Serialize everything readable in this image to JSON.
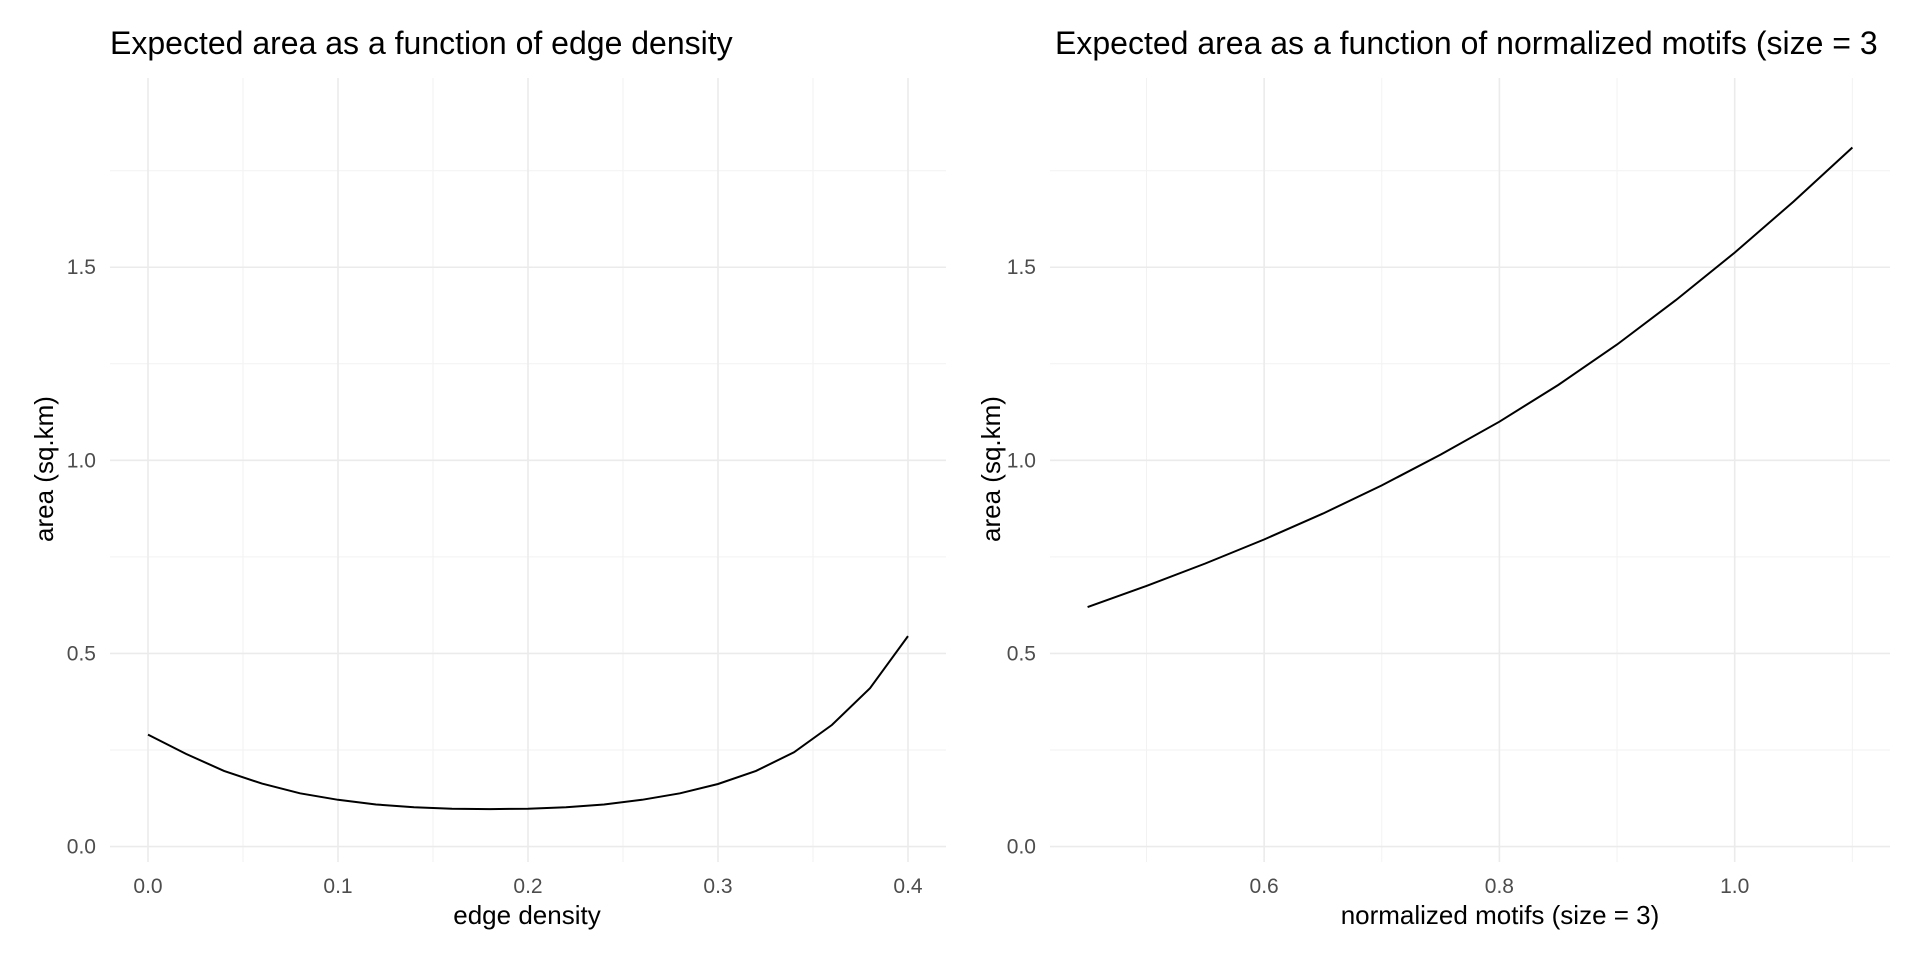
{
  "chart_data": [
    {
      "type": "line",
      "title": "Expected area as a function of edge density",
      "xlabel": "edge density",
      "ylabel": "area (sq.km)",
      "xlim": [
        -0.02,
        0.42
      ],
      "ylim": [
        -0.04,
        1.99
      ],
      "x_ticks": [
        0.0,
        0.1,
        0.2,
        0.3,
        0.4
      ],
      "x_tick_labels": [
        "0.0",
        "0.1",
        "0.2",
        "0.3",
        "0.4"
      ],
      "x_minor": [
        0.05,
        0.15,
        0.25,
        0.35
      ],
      "y_ticks": [
        0.0,
        0.5,
        1.0,
        1.5
      ],
      "y_tick_labels": [
        "0.0",
        "0.5",
        "1.0",
        "1.5"
      ],
      "y_minor": [
        0.25,
        0.75,
        1.25,
        1.75
      ],
      "grid": true,
      "series": [
        {
          "x": [
            0.0,
            0.02,
            0.04,
            0.06,
            0.08,
            0.1,
            0.12,
            0.14,
            0.16,
            0.18,
            0.2,
            0.22,
            0.24,
            0.26,
            0.28,
            0.3,
            0.32,
            0.34,
            0.36,
            0.38,
            0.4
          ],
          "values": [
            0.29,
            0.24,
            0.196,
            0.163,
            0.138,
            0.121,
            0.109,
            0.102,
            0.098,
            0.097,
            0.098,
            0.102,
            0.109,
            0.121,
            0.138,
            0.162,
            0.196,
            0.244,
            0.315,
            0.41,
            0.545
          ]
        }
      ]
    },
    {
      "type": "line",
      "title": "Expected area as a function of normalized motifs (size = 3",
      "xlabel": "normalized motifs (size = 3)",
      "ylabel": "area (sq.km)",
      "xlim": [
        0.418,
        1.132
      ],
      "ylim": [
        -0.04,
        1.99
      ],
      "x_ticks": [
        0.6,
        0.8,
        1.0
      ],
      "x_tick_labels": [
        "0.6",
        "0.8",
        "1.0"
      ],
      "x_minor": [
        0.5,
        0.7,
        0.9,
        1.1
      ],
      "y_ticks": [
        0.0,
        0.5,
        1.0,
        1.5
      ],
      "y_tick_labels": [
        "0.0",
        "0.5",
        "1.0",
        "1.5"
      ],
      "y_minor": [
        0.25,
        0.75,
        1.25,
        1.75
      ],
      "grid": true,
      "series": [
        {
          "x": [
            0.45,
            0.5,
            0.55,
            0.6,
            0.65,
            0.7,
            0.75,
            0.8,
            0.85,
            0.9,
            0.95,
            1.0,
            1.05,
            1.1
          ],
          "values": [
            0.62,
            0.675,
            0.733,
            0.795,
            0.862,
            0.935,
            1.015,
            1.1,
            1.195,
            1.3,
            1.415,
            1.538,
            1.67,
            1.81
          ]
        }
      ]
    }
  ]
}
